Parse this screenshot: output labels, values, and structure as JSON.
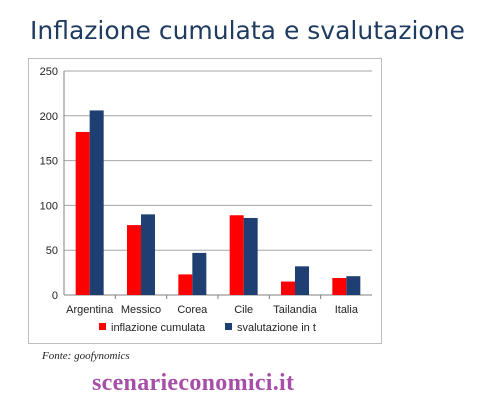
{
  "title": "Inflazione cumulata e svalutazione",
  "source": "Fonte: goofynomics",
  "watermark": "scenarieconomici.it",
  "colors": {
    "series1": "#ff0000",
    "series2": "#1f3f73",
    "grid": "#a6a6a6",
    "axis": "#808080"
  },
  "chart_data": {
    "type": "bar",
    "categories": [
      "Argentina",
      "Messico",
      "Corea",
      "Cile",
      "Tailandia",
      "Italia"
    ],
    "series": [
      {
        "name": "inflazione cumulata",
        "values": [
          182,
          78,
          23,
          89,
          15,
          19
        ]
      },
      {
        "name": "svalutazione in t",
        "values": [
          206,
          90,
          47,
          86,
          32,
          21
        ]
      }
    ],
    "ylim": [
      0,
      250
    ],
    "yticks": [
      0,
      50,
      100,
      150,
      200,
      250
    ],
    "grid": true,
    "legend": "bottom"
  }
}
